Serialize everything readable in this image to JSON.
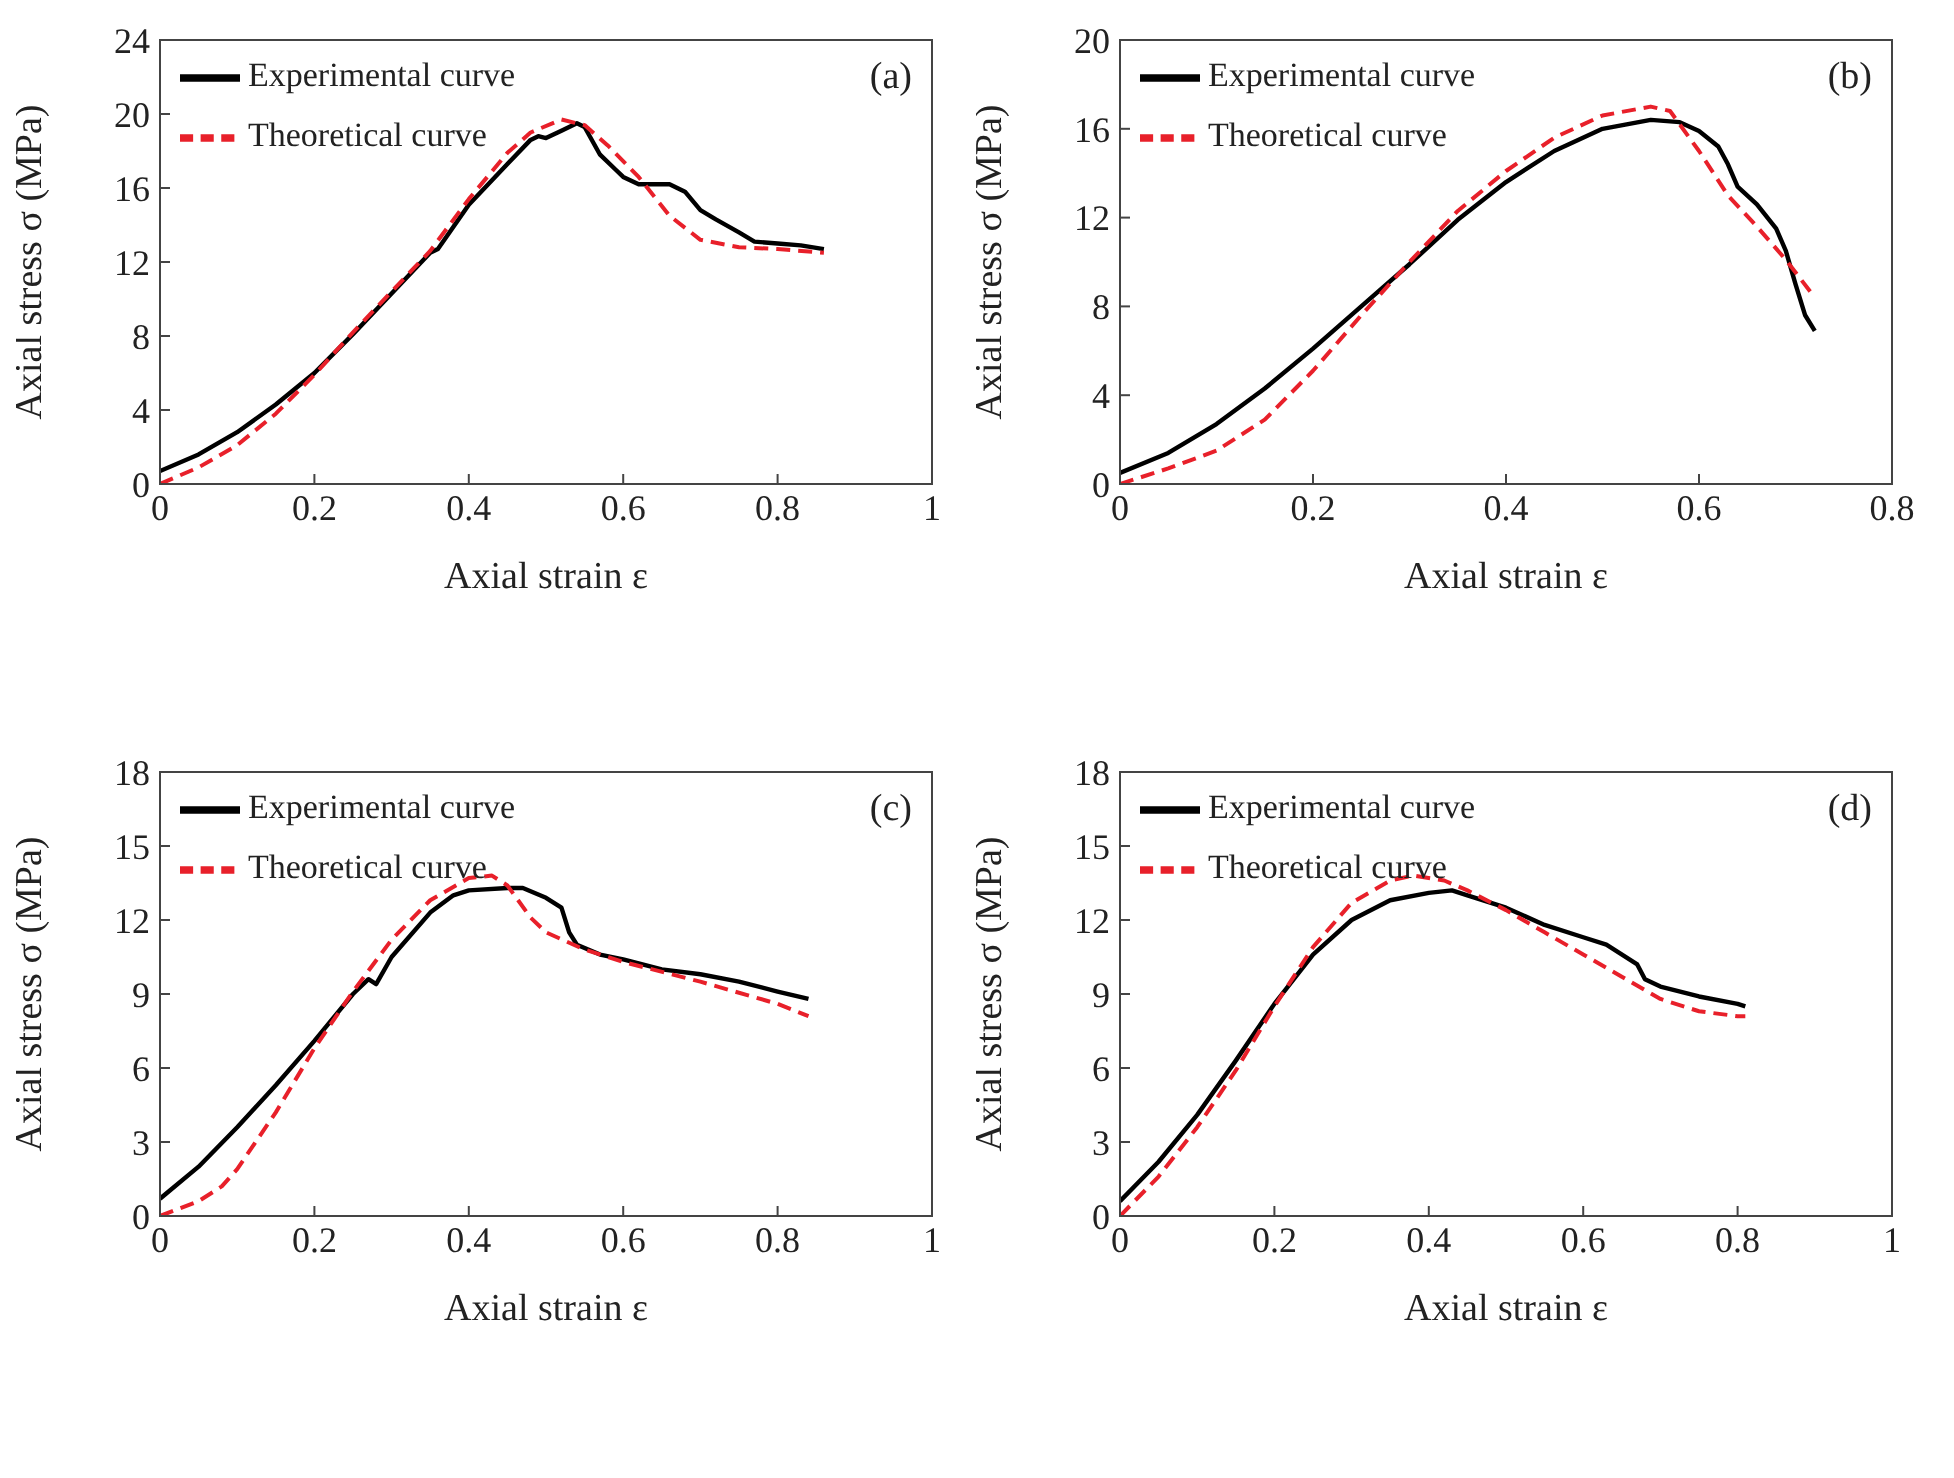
{
  "chart_data": [
    {
      "type": "line",
      "xlabel": "Axial strain ε",
      "ylabel": "Axial stress σ (MPa)",
      "annotations": [
        "(a)"
      ],
      "xlim": [
        0,
        1
      ],
      "xticks": [
        0,
        0.2,
        0.4,
        0.6,
        0.8,
        1
      ],
      "ylim": [
        0,
        24
      ],
      "yticks": [
        0,
        4,
        8,
        12,
        16,
        20,
        24
      ],
      "legend": "top left",
      "series": [
        {
          "name": "Experimental curve",
          "color": "#000000",
          "line_style": "solid",
          "x": [
            0,
            0.05,
            0.1,
            0.15,
            0.2,
            0.25,
            0.3,
            0.35,
            0.36,
            0.4,
            0.45,
            0.48,
            0.49,
            0.5,
            0.52,
            0.54,
            0.55,
            0.57,
            0.59,
            0.6,
            0.62,
            0.66,
            0.68,
            0.7,
            0.72,
            0.75,
            0.77,
            0.8,
            0.83,
            0.86
          ],
          "values": [
            0.7,
            1.6,
            2.8,
            4.3,
            6.0,
            8.1,
            10.3,
            12.5,
            12.7,
            15.1,
            17.3,
            18.6,
            18.8,
            18.7,
            19.1,
            19.5,
            19.3,
            17.8,
            17.0,
            16.6,
            16.2,
            16.2,
            15.8,
            14.8,
            14.3,
            13.6,
            13.1,
            13.0,
            12.9,
            12.7
          ]
        },
        {
          "name": "Theoretical curve",
          "color": "#e8202a",
          "line_style": "dashed",
          "x": [
            0,
            0.05,
            0.1,
            0.15,
            0.2,
            0.25,
            0.3,
            0.35,
            0.4,
            0.45,
            0.48,
            0.52,
            0.55,
            0.58,
            0.62,
            0.66,
            0.7,
            0.75,
            0.8,
            0.86
          ],
          "values": [
            0,
            0.9,
            2.1,
            3.8,
            5.9,
            8.2,
            10.4,
            12.6,
            15.4,
            17.9,
            19.0,
            19.7,
            19.4,
            18.3,
            16.6,
            14.5,
            13.2,
            12.8,
            12.7,
            12.5
          ]
        }
      ]
    },
    {
      "type": "line",
      "xlabel": "Axial strain ε",
      "ylabel": "Axial stress σ (MPa)",
      "annotations": [
        "(b)"
      ],
      "xlim": [
        0,
        0.8
      ],
      "xticks": [
        0,
        0.2,
        0.4,
        0.6,
        0.8
      ],
      "ylim": [
        0,
        20
      ],
      "yticks": [
        0,
        4,
        8,
        12,
        16,
        20
      ],
      "legend": "top left",
      "series": [
        {
          "name": "Experimental curve",
          "color": "#000000",
          "line_style": "solid",
          "x": [
            0,
            0.05,
            0.1,
            0.15,
            0.2,
            0.25,
            0.3,
            0.35,
            0.4,
            0.45,
            0.5,
            0.55,
            0.58,
            0.6,
            0.62,
            0.63,
            0.64,
            0.66,
            0.68,
            0.69,
            0.7,
            0.71,
            0.72
          ],
          "values": [
            0.5,
            1.4,
            2.7,
            4.3,
            6.1,
            8.0,
            9.9,
            11.9,
            13.6,
            15.0,
            16.0,
            16.4,
            16.3,
            15.9,
            15.2,
            14.4,
            13.4,
            12.6,
            11.5,
            10.5,
            9.0,
            7.6,
            6.9
          ]
        },
        {
          "name": "Theoretical curve",
          "color": "#e8202a",
          "line_style": "dashed",
          "x": [
            0,
            0.05,
            0.1,
            0.15,
            0.2,
            0.25,
            0.3,
            0.35,
            0.4,
            0.45,
            0.5,
            0.55,
            0.57,
            0.6,
            0.63,
            0.66,
            0.69,
            0.72
          ],
          "values": [
            0,
            0.7,
            1.5,
            2.9,
            5.1,
            7.6,
            10.0,
            12.3,
            14.1,
            15.6,
            16.6,
            17.0,
            16.8,
            15.0,
            13.0,
            11.6,
            10.1,
            8.4
          ]
        }
      ]
    },
    {
      "type": "line",
      "xlabel": "Axial strain ε",
      "ylabel": "Axial stress σ (MPa)",
      "annotations": [
        "(c)"
      ],
      "xlim": [
        0,
        1
      ],
      "xticks": [
        0,
        0.2,
        0.4,
        0.6,
        0.8,
        1
      ],
      "ylim": [
        0,
        18
      ],
      "yticks": [
        0,
        3,
        6,
        9,
        12,
        15,
        18
      ],
      "legend": "top left",
      "series": [
        {
          "name": "Experimental curve",
          "color": "#000000",
          "line_style": "solid",
          "x": [
            0,
            0.05,
            0.1,
            0.15,
            0.2,
            0.25,
            0.27,
            0.28,
            0.3,
            0.35,
            0.38,
            0.4,
            0.45,
            0.47,
            0.5,
            0.52,
            0.53,
            0.54,
            0.57,
            0.6,
            0.65,
            0.7,
            0.75,
            0.8,
            0.84
          ],
          "values": [
            0.7,
            2.0,
            3.6,
            5.3,
            7.1,
            9.0,
            9.6,
            9.4,
            10.5,
            12.3,
            13.0,
            13.2,
            13.3,
            13.3,
            12.9,
            12.5,
            11.5,
            11.0,
            10.6,
            10.4,
            10.0,
            9.8,
            9.5,
            9.1,
            8.8
          ]
        },
        {
          "name": "Theoretical curve",
          "color": "#e8202a",
          "line_style": "dashed",
          "x": [
            0,
            0.05,
            0.08,
            0.1,
            0.15,
            0.2,
            0.25,
            0.3,
            0.35,
            0.4,
            0.43,
            0.45,
            0.48,
            0.5,
            0.55,
            0.6,
            0.7,
            0.8,
            0.84
          ],
          "values": [
            0,
            0.6,
            1.2,
            1.9,
            4.2,
            6.8,
            9.1,
            11.2,
            12.8,
            13.7,
            13.8,
            13.4,
            12.1,
            11.5,
            10.8,
            10.3,
            9.5,
            8.6,
            8.1
          ]
        }
      ]
    },
    {
      "type": "line",
      "xlabel": "Axial strain ε",
      "ylabel": "Axial stress σ (MPa)",
      "annotations": [
        "(d)"
      ],
      "xlim": [
        0,
        1
      ],
      "xticks": [
        0,
        0.2,
        0.4,
        0.6,
        0.8,
        1
      ],
      "ylim": [
        0,
        18
      ],
      "yticks": [
        0,
        3,
        6,
        9,
        12,
        15,
        18
      ],
      "legend": "top left",
      "series": [
        {
          "name": "Experimental curve",
          "color": "#000000",
          "line_style": "solid",
          "x": [
            0,
            0.05,
            0.1,
            0.15,
            0.2,
            0.25,
            0.3,
            0.35,
            0.4,
            0.43,
            0.45,
            0.5,
            0.55,
            0.6,
            0.63,
            0.67,
            0.68,
            0.7,
            0.75,
            0.8,
            0.81
          ],
          "values": [
            0.6,
            2.2,
            4.1,
            6.3,
            8.6,
            10.6,
            12.0,
            12.8,
            13.1,
            13.2,
            13.0,
            12.5,
            11.8,
            11.3,
            11.0,
            10.2,
            9.6,
            9.3,
            8.9,
            8.6,
            8.5
          ]
        },
        {
          "name": "Theoretical curve",
          "color": "#e8202a",
          "line_style": "dashed",
          "x": [
            0,
            0.05,
            0.1,
            0.15,
            0.2,
            0.25,
            0.3,
            0.35,
            0.38,
            0.42,
            0.45,
            0.5,
            0.55,
            0.6,
            0.65,
            0.7,
            0.75,
            0.8,
            0.81
          ],
          "values": [
            0,
            1.6,
            3.6,
            5.9,
            8.5,
            10.9,
            12.7,
            13.6,
            13.8,
            13.6,
            13.2,
            12.4,
            11.5,
            10.6,
            9.7,
            8.8,
            8.3,
            8.1,
            8.1
          ]
        }
      ]
    }
  ]
}
